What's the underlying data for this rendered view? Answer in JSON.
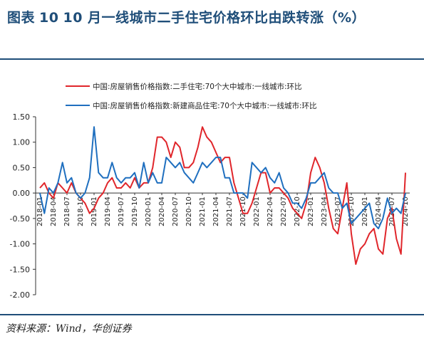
{
  "header": {
    "figure_label": "图表",
    "figure_number": "10",
    "title_text": "10 月一线城市二手住宅价格环比由跌转涨（%）"
  },
  "footer": {
    "source": "资料来源：Wind，华创证券"
  },
  "colors": {
    "series_resale": "#e0262b",
    "series_new": "#1f6fbf",
    "frame": "#1f4e79"
  },
  "chart_data": {
    "type": "line",
    "title": "",
    "xlabel": "",
    "ylabel": "",
    "ylim": [
      -2.0,
      1.5
    ],
    "yticks": [
      "1.50",
      "1.00",
      "0.50",
      "0.00",
      "-0.50",
      "-1.00",
      "-1.50",
      "-2.00"
    ],
    "grid": false,
    "legend_position": "top-center",
    "x_ticks": [
      "2018-01",
      "2018-04",
      "2018-07",
      "2018-10",
      "2019-01",
      "2019-04",
      "2019-07",
      "2019-10",
      "2020-01",
      "2020-04",
      "2020-07",
      "2020-10",
      "2021-01",
      "2021-04",
      "2021-07",
      "2021-10",
      "2022-01",
      "2022-04",
      "2022-07",
      "2022-10",
      "2023-01",
      "2023-04",
      "2023-07",
      "2023-10",
      "2024-01",
      "2024-04",
      "2024-07",
      "2024-10"
    ],
    "x": [
      "2018-01",
      "2018-02",
      "2018-03",
      "2018-04",
      "2018-05",
      "2018-06",
      "2018-07",
      "2018-08",
      "2018-09",
      "2018-10",
      "2018-11",
      "2018-12",
      "2019-01",
      "2019-02",
      "2019-03",
      "2019-04",
      "2019-05",
      "2019-06",
      "2019-07",
      "2019-08",
      "2019-09",
      "2019-10",
      "2019-11",
      "2019-12",
      "2020-01",
      "2020-02",
      "2020-03",
      "2020-04",
      "2020-05",
      "2020-06",
      "2020-07",
      "2020-08",
      "2020-09",
      "2020-10",
      "2020-11",
      "2020-12",
      "2021-01",
      "2021-02",
      "2021-03",
      "2021-04",
      "2021-05",
      "2021-06",
      "2021-07",
      "2021-08",
      "2021-09",
      "2021-10",
      "2021-11",
      "2021-12",
      "2022-01",
      "2022-02",
      "2022-03",
      "2022-04",
      "2022-05",
      "2022-06",
      "2022-07",
      "2022-08",
      "2022-09",
      "2022-10",
      "2022-11",
      "2022-12",
      "2023-01",
      "2023-02",
      "2023-03",
      "2023-04",
      "2023-05",
      "2023-06",
      "2023-07",
      "2023-08",
      "2023-09",
      "2023-10",
      "2023-11",
      "2023-12",
      "2024-01",
      "2024-02",
      "2024-03",
      "2024-04",
      "2024-05",
      "2024-06",
      "2024-07",
      "2024-08",
      "2024-09",
      "2024-10"
    ],
    "series": [
      {
        "name": "中国:房屋销售价格指数:二手住宅:70个大中城市:一线城市:环比",
        "values": [
          0.1,
          0.2,
          0.0,
          -0.1,
          0.2,
          0.1,
          0.0,
          0.2,
          0.0,
          -0.1,
          -0.2,
          -0.4,
          -0.3,
          -0.1,
          0.0,
          0.2,
          0.3,
          0.1,
          0.1,
          0.2,
          0.1,
          0.3,
          0.1,
          0.2,
          0.2,
          0.5,
          1.1,
          1.1,
          1.0,
          0.7,
          1.0,
          0.9,
          0.5,
          0.5,
          0.6,
          0.9,
          1.3,
          1.1,
          1.0,
          0.8,
          0.6,
          0.7,
          0.7,
          0.2,
          -0.1,
          -0.4,
          -0.4,
          -0.2,
          0.1,
          0.4,
          0.4,
          0.0,
          0.1,
          0.1,
          0.0,
          -0.1,
          -0.3,
          -0.4,
          -0.5,
          -0.2,
          0.4,
          0.7,
          0.5,
          0.2,
          -0.3,
          -0.7,
          -0.8,
          -0.3,
          0.2,
          -0.8,
          -1.4,
          -1.1,
          -1.0,
          -0.8,
          -0.7,
          -1.1,
          -1.2,
          -0.5,
          -0.3,
          -0.9,
          -1.2,
          0.4
        ]
      },
      {
        "name": "中国:房屋销售价格指数:新建商品住宅:70个大中城市:一线城市:环比",
        "values": [
          0.0,
          -0.4,
          0.1,
          0.0,
          0.2,
          0.6,
          0.2,
          0.3,
          0.0,
          -0.1,
          0.0,
          0.3,
          1.3,
          0.4,
          0.3,
          0.3,
          0.6,
          0.3,
          0.2,
          0.3,
          0.3,
          0.4,
          0.1,
          0.6,
          0.2,
          0.4,
          0.2,
          0.2,
          0.7,
          0.6,
          0.5,
          0.6,
          0.4,
          0.3,
          0.2,
          0.4,
          0.6,
          0.5,
          0.6,
          0.7,
          0.7,
          0.3,
          0.3,
          0.0,
          0.0,
          0.0,
          -0.1,
          0.6,
          0.5,
          0.4,
          0.5,
          0.3,
          0.2,
          0.4,
          0.1,
          0.0,
          -0.2,
          -0.2,
          -0.3,
          -0.1,
          0.2,
          0.2,
          0.3,
          0.4,
          0.1,
          0.0,
          0.0,
          -0.3,
          -0.2,
          -0.6,
          -0.5,
          -0.4,
          -0.3,
          -0.2,
          -0.6,
          -0.7,
          -0.5,
          -0.1,
          -0.4,
          -0.3,
          -0.4,
          0.0
        ]
      }
    ]
  }
}
